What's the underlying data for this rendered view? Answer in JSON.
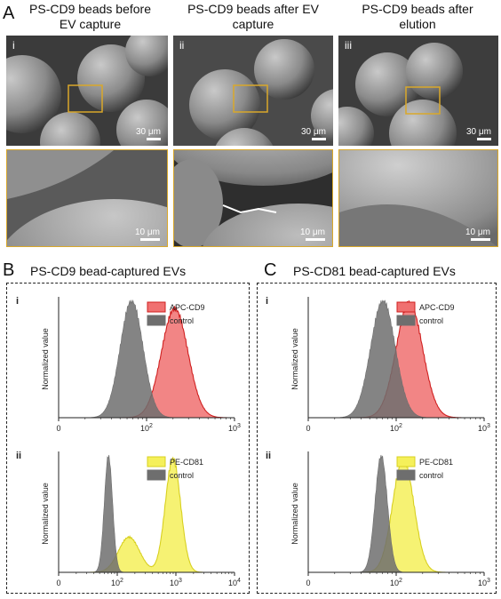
{
  "panel_a": {
    "letter": "A",
    "columns": [
      {
        "title_line1": "PS-CD9 beads before",
        "title_line2": "EV capture",
        "tag": "i",
        "scale_top": "30 μm",
        "scale_bottom": "10 μm"
      },
      {
        "title_line1": "PS-CD9 beads after EV",
        "title_line2": "capture",
        "tag": "ii",
        "scale_top": "30 μm",
        "scale_bottom": "10 μm"
      },
      {
        "title_line1": "PS-CD9 beads after",
        "title_line2": "elution",
        "tag": "iii",
        "scale_top": "30 μm",
        "scale_bottom": "10 μm"
      }
    ]
  },
  "panel_b": {
    "letter": "B",
    "title": "PS-CD9 bead-captured EVs"
  },
  "panel_c": {
    "letter": "C",
    "title": "PS-CD81 bead-captured EVs"
  },
  "colors": {
    "apc_fill": "#f07070",
    "apc_edge": "#d02020",
    "pe_fill": "#f5f05a",
    "pe_edge": "#d8d020",
    "control_fill": "#6e6e6e",
    "gold_box": "#d9a82a"
  },
  "chart_data": [
    {
      "id": "B-i",
      "type": "area",
      "roman": "i",
      "ylabel": "Normalized value",
      "xscale": "log",
      "xlim": [
        10,
        1000
      ],
      "xticks": [
        {
          "v": 10,
          "label": "0"
        },
        {
          "v": 100,
          "label": "10^2"
        },
        {
          "v": 1000,
          "label": "10^3"
        }
      ],
      "legend": [
        "APC-CD9",
        "control"
      ],
      "series": [
        {
          "name": "control",
          "color": "control",
          "peak_log10": 1.83,
          "width": 0.13,
          "height": 1.0
        },
        {
          "name": "APC-CD9",
          "color": "apc",
          "peak_log10": 2.32,
          "width": 0.15,
          "height": 0.93
        }
      ]
    },
    {
      "id": "B-ii",
      "type": "area",
      "roman": "ii",
      "ylabel": "Normalized value",
      "xscale": "log",
      "xlim": [
        10,
        10000
      ],
      "xticks": [
        {
          "v": 10,
          "label": "0"
        },
        {
          "v": 100,
          "label": "10^2"
        },
        {
          "v": 1000,
          "label": "10^3"
        },
        {
          "v": 10000,
          "label": "10^4"
        }
      ],
      "legend": [
        "PE-CD81",
        "control"
      ],
      "series": [
        {
          "name": "control",
          "color": "control",
          "peak_log10": 1.85,
          "width": 0.07,
          "height": 1.0
        },
        {
          "name": "PE-CD81",
          "color": "pe",
          "peak_log10": 2.95,
          "width": 0.13,
          "height": 0.97,
          "shoulder_log10": 2.2,
          "shoulder_height": 0.3
        }
      ]
    },
    {
      "id": "C-i",
      "type": "area",
      "roman": "i",
      "ylabel": "Normalized value",
      "xscale": "log",
      "xlim": [
        10,
        1000
      ],
      "xticks": [
        {
          "v": 10,
          "label": "0"
        },
        {
          "v": 100,
          "label": "10^2"
        },
        {
          "v": 1000,
          "label": "10^3"
        }
      ],
      "legend": [
        "APC-CD9",
        "control"
      ],
      "series": [
        {
          "name": "control",
          "color": "control",
          "peak_log10": 1.85,
          "width": 0.14,
          "height": 1.0
        },
        {
          "name": "APC-CD9",
          "color": "apc",
          "peak_log10": 2.15,
          "width": 0.15,
          "height": 0.98
        }
      ]
    },
    {
      "id": "C-ii",
      "type": "area",
      "roman": "ii",
      "ylabel": "Normalized value",
      "xscale": "log",
      "xlim": [
        10,
        1000
      ],
      "xticks": [
        {
          "v": 10,
          "label": "0"
        },
        {
          "v": 100,
          "label": "10^2"
        },
        {
          "v": 1000,
          "label": "10^3"
        }
      ],
      "legend": [
        "PE-CD81",
        "control"
      ],
      "series": [
        {
          "name": "control",
          "color": "control",
          "peak_log10": 1.83,
          "width": 0.07,
          "height": 1.0
        },
        {
          "name": "PE-CD81",
          "color": "pe",
          "peak_log10": 2.08,
          "width": 0.12,
          "height": 0.97
        }
      ]
    }
  ]
}
